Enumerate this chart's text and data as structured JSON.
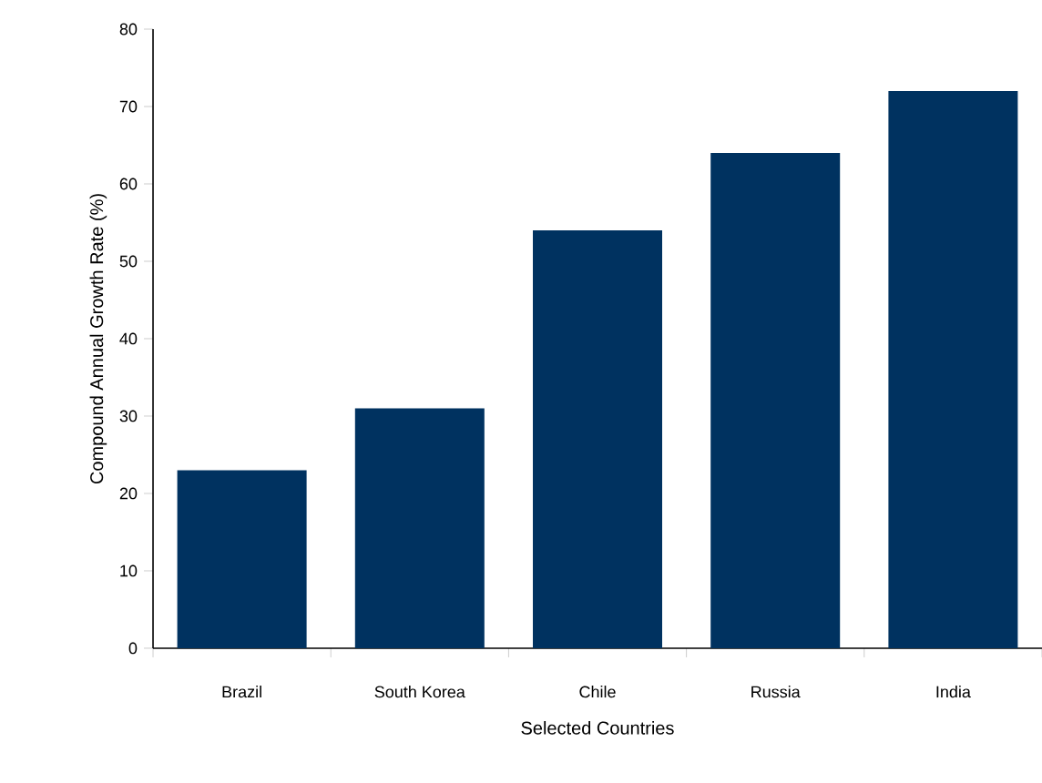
{
  "chart_data": {
    "type": "bar",
    "xlabel": "Selected Countries",
    "ylabel": "Compound Annual Growth Rate (%)",
    "categories": [
      "Brazil",
      "South Korea",
      "Chile",
      "Russia",
      "India"
    ],
    "values": [
      23,
      31,
      54,
      64,
      72
    ],
    "color": "#003260",
    "ylim": [
      0,
      80
    ],
    "yticks": [
      0,
      10,
      20,
      30,
      40,
      50,
      60,
      70,
      80
    ]
  }
}
